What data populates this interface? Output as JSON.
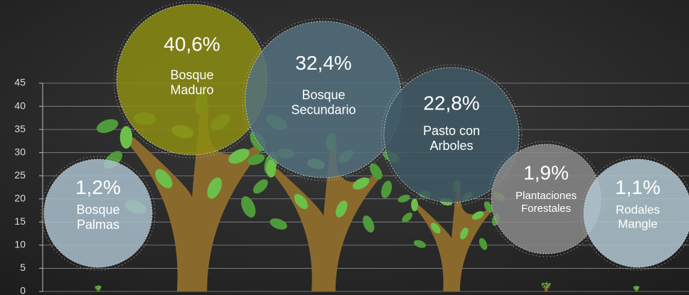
{
  "chart_data": {
    "type": "pictograph",
    "categories": [
      [
        "Bosque",
        "Palmas"
      ],
      [
        "Bosque",
        "Maduro"
      ],
      [
        "Bosque",
        "Secundario"
      ],
      [
        "Pasto con",
        "Arboles"
      ],
      [
        "Plantaciones",
        "Forestales"
      ],
      [
        "Rodales",
        "Mangle"
      ]
    ],
    "values": [
      1.2,
      40.6,
      32.4,
      22.8,
      1.9,
      1.1
    ],
    "value_labels": [
      "1,2%",
      "40,6%",
      "32,4%",
      "22,8%",
      "1,9%",
      "1,1%"
    ],
    "colors": [
      "#a9c0cc",
      "#8c8c12",
      "#52707e",
      "#3f5966",
      "#8a8a8a",
      "#b2c8d2"
    ],
    "ylim": [
      0,
      45
    ],
    "yticks": [
      0,
      5,
      10,
      15,
      20,
      25,
      30,
      35,
      40,
      45
    ],
    "grid": true
  }
}
